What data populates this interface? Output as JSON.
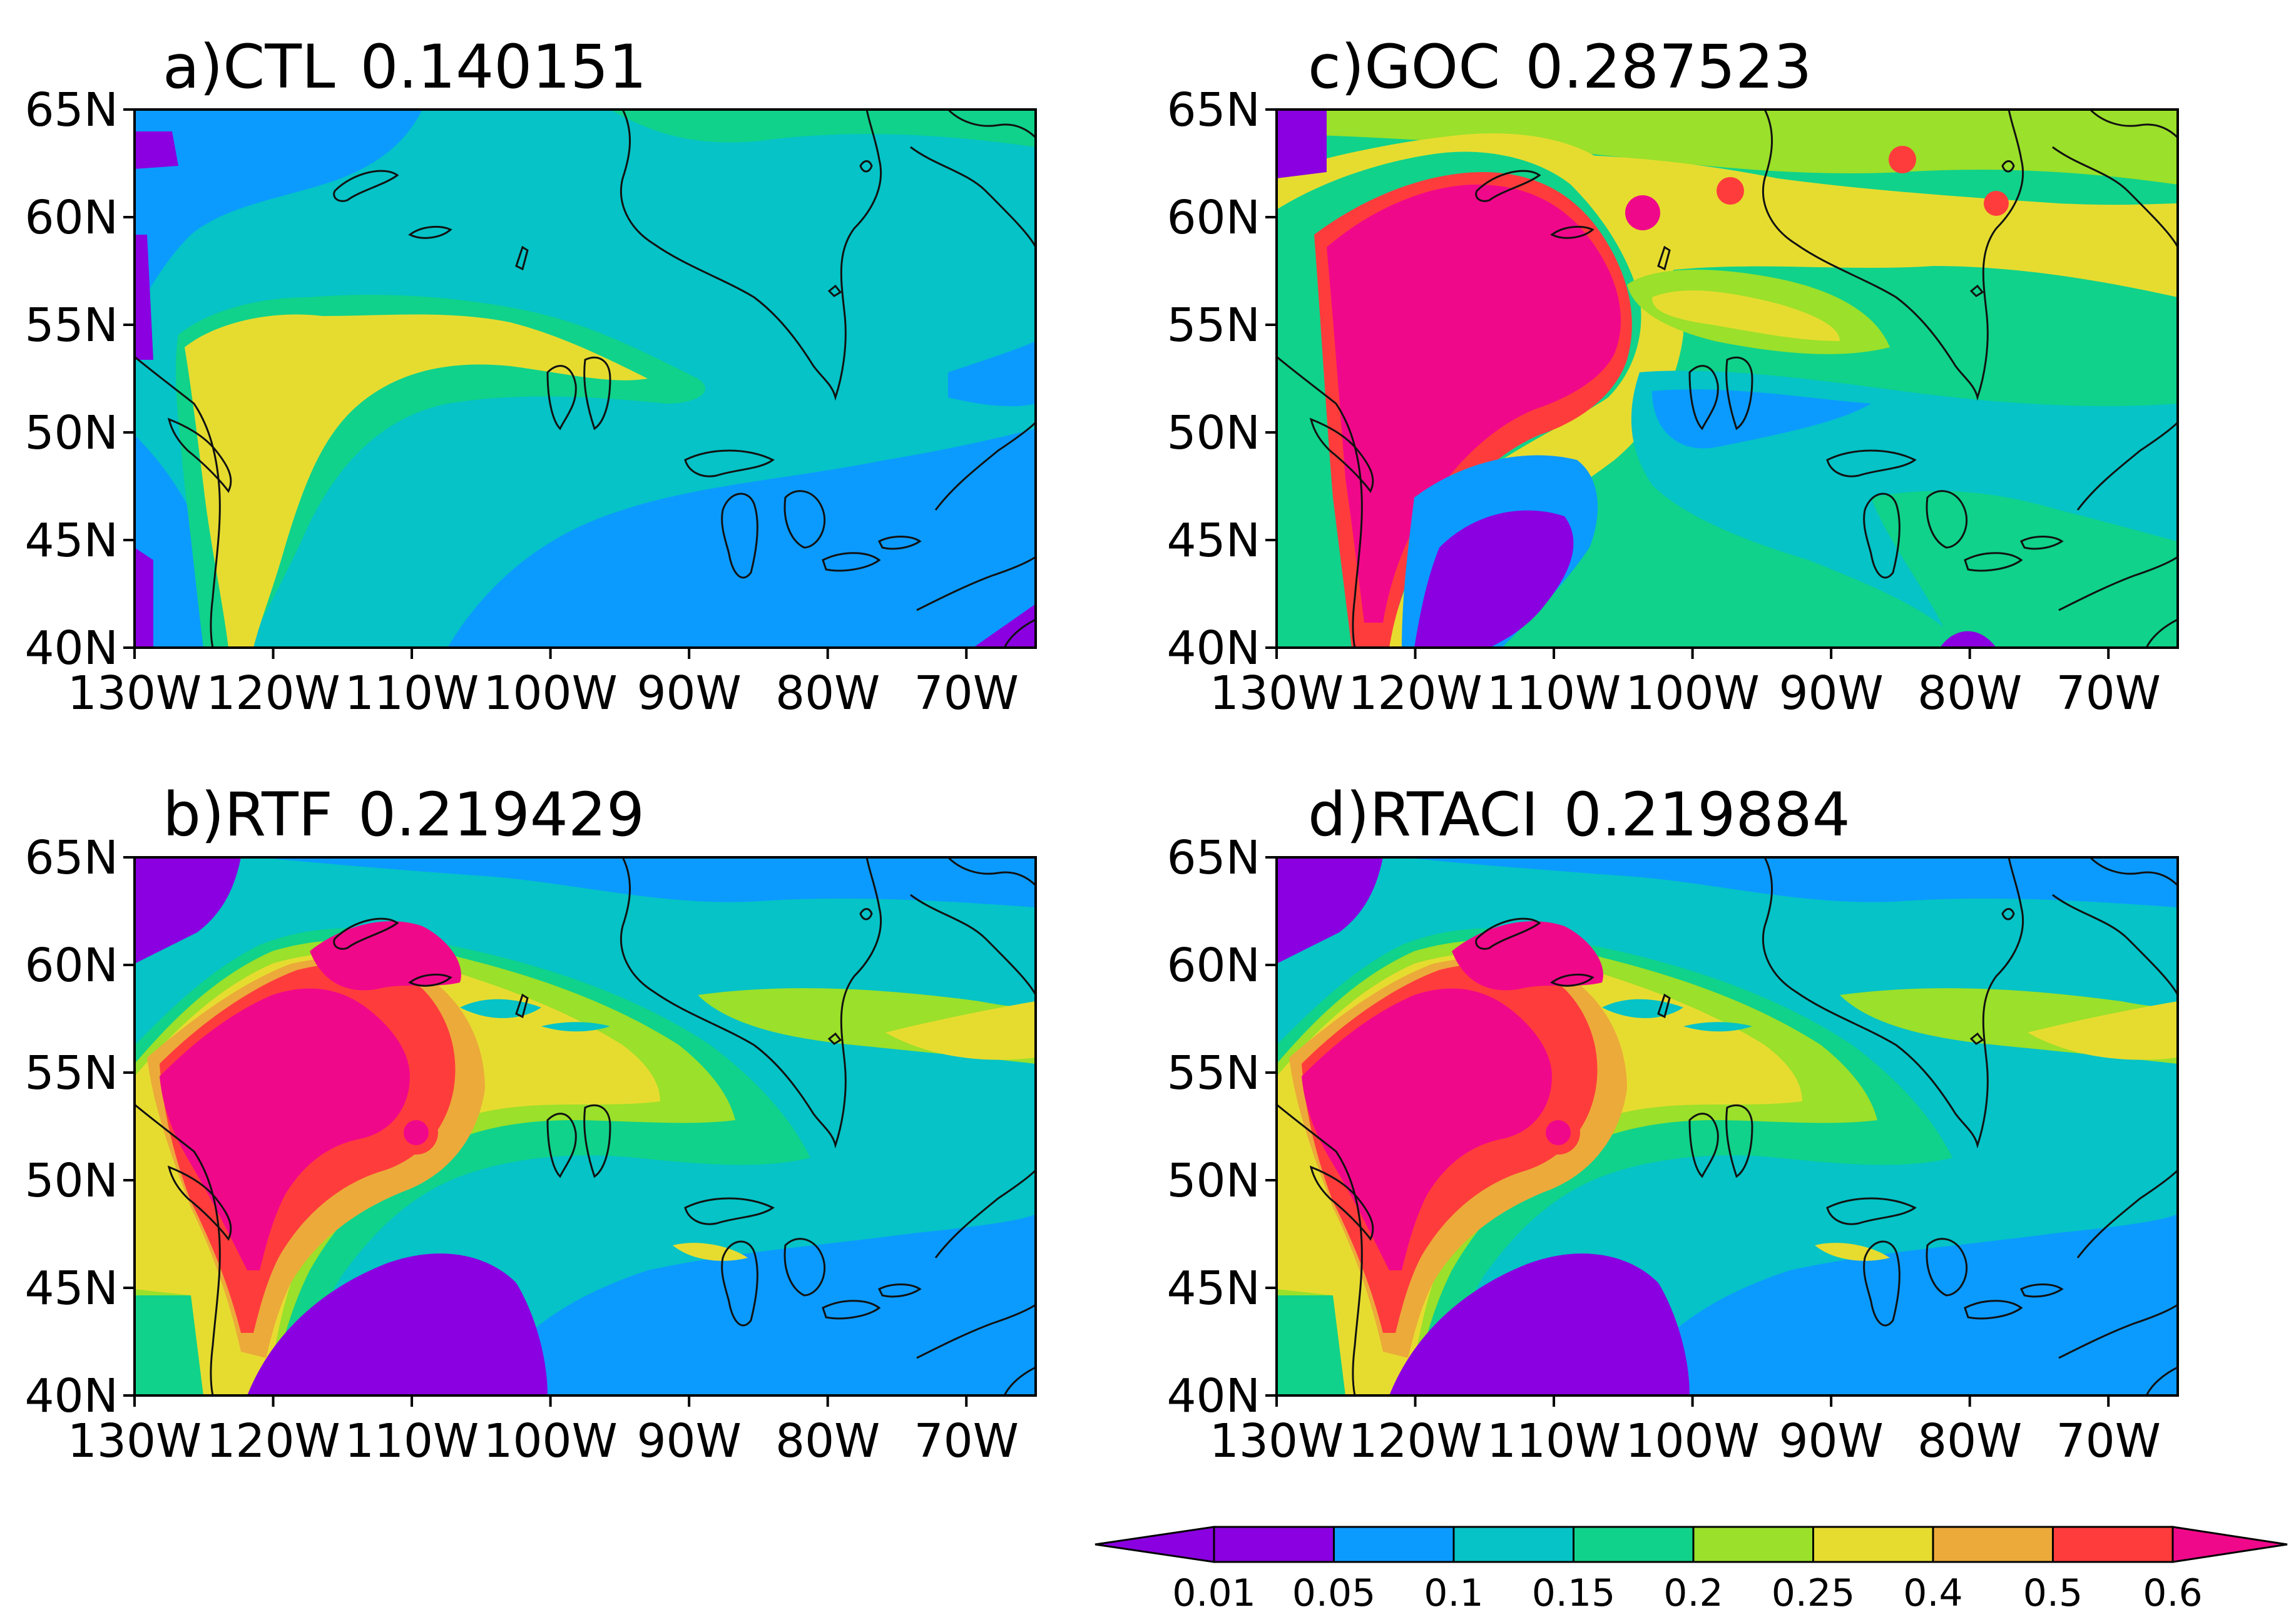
{
  "figure": {
    "panels": [
      {
        "id": "a",
        "label": "a)CTL",
        "value": "0.140151"
      },
      {
        "id": "c",
        "label": "c)GOC",
        "value": "0.287523"
      },
      {
        "id": "b",
        "label": "b)RTF",
        "value": "0.219429"
      },
      {
        "id": "d",
        "label": "d)RTACI",
        "value": "0.219884"
      }
    ],
    "lat_labels": [
      "65N",
      "60N",
      "55N",
      "50N",
      "45N",
      "40N"
    ],
    "lon_labels": [
      "130W",
      "120W",
      "110W",
      "100W",
      "90W",
      "80W",
      "70W"
    ],
    "colorbar": {
      "labels": [
        "0.01",
        "0.05",
        "0.1",
        "0.15",
        "0.2",
        "0.25",
        "0.4",
        "0.5",
        "0.6"
      ],
      "colors": [
        "#8a00e0",
        "#8a00e0",
        "#0b9bff",
        "#05c3c6",
        "#10d28a",
        "#9be02a",
        "#e6dc30",
        "#ecaa3a",
        "#ff3c3c",
        "#f0088a"
      ]
    },
    "palette": {
      "purple": "#8a00e0",
      "blue": "#0b9bff",
      "cyan": "#05c3c6",
      "teal": "#10d28a",
      "lime": "#9be02a",
      "yellow": "#e6dc30",
      "orange": "#ecaa3a",
      "red": "#ff3c3c",
      "magenta": "#f0088a"
    }
  }
}
